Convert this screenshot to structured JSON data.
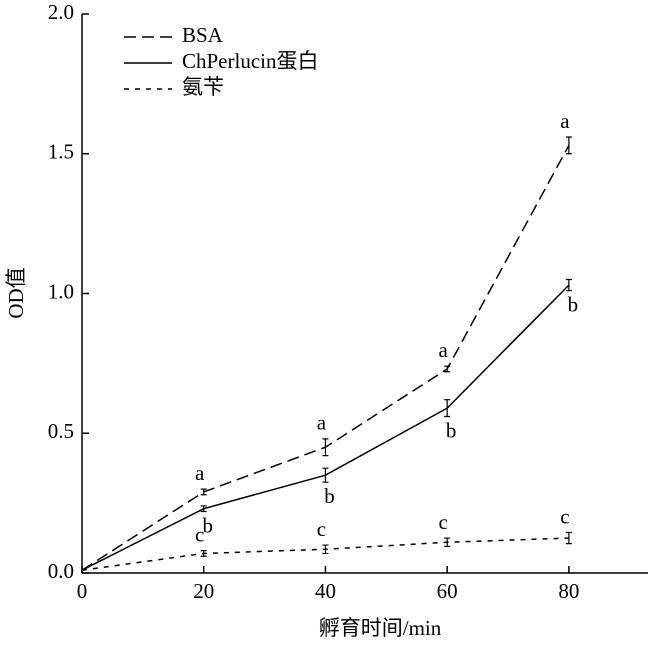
{
  "chart_data": {
    "type": "line",
    "x": [
      0,
      20,
      40,
      60,
      80
    ],
    "series": [
      {
        "name": "BSA",
        "color": "#000000",
        "dash": "dashed",
        "values": [
          0.01,
          0.29,
          0.45,
          0.73,
          1.53
        ],
        "errors": [
          0,
          0.01,
          0.03,
          0.01,
          0.03
        ],
        "labels": [
          null,
          "a",
          "a",
          "a",
          "a"
        ],
        "label_position": "above"
      },
      {
        "name": "ChPerlucin蛋白",
        "color": "#000000",
        "dash": "solid",
        "values": [
          0.01,
          0.23,
          0.35,
          0.59,
          1.03
        ],
        "errors": [
          0,
          0.01,
          0.025,
          0.03,
          0.02
        ],
        "labels": [
          null,
          "b",
          "b",
          "b",
          "b"
        ],
        "label_position": "below"
      },
      {
        "name": "氨苄",
        "color": "#000000",
        "dash": "dotted",
        "values": [
          0.01,
          0.07,
          0.085,
          0.11,
          0.125
        ],
        "errors": [
          0,
          0.01,
          0.015,
          0.015,
          0.02
        ],
        "labels": [
          null,
          "c",
          "c",
          "c",
          "c"
        ],
        "label_position": "above"
      }
    ],
    "x_label": "孵育时间/min",
    "y_label": "OD值",
    "xlim": [
      0,
      93
    ],
    "ylim": [
      0,
      2.0
    ],
    "xticks": [
      0,
      20,
      40,
      60,
      80
    ],
    "yticks": [
      {
        "value": 0,
        "label": "0.0"
      },
      {
        "value": 0.5,
        "label": "0.5"
      },
      {
        "value": 1.0,
        "label": "1.0"
      },
      {
        "value": 1.5,
        "label": "1.5"
      },
      {
        "value": 2.0,
        "label": "2.0"
      }
    ],
    "legend": "upper-left"
  }
}
